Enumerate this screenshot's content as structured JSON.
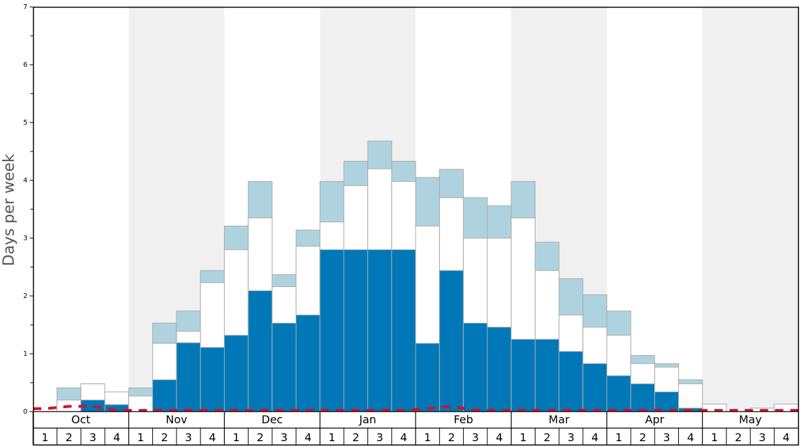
{
  "chart_data": {
    "type": "bar",
    "ylabel": "Days per week",
    "ylim": [
      0,
      7
    ],
    "yticks": [
      0,
      1,
      2,
      3,
      4,
      5,
      6,
      7
    ],
    "months": [
      "Oct",
      "Nov",
      "Dec",
      "Jan",
      "Feb",
      "Mar",
      "Apr",
      "May"
    ],
    "weeks": [
      "1",
      "2",
      "3",
      "4"
    ],
    "colors": {
      "dark": "#0077b6",
      "white": "#ffffff",
      "light": "#aed3df",
      "band": "#f0f0f0",
      "dashed": "#d0102a",
      "edge": "#aaaaaa"
    },
    "series": [
      {
        "values": [
          0.0,
          0.0,
          0.2,
          0.12,
          0.0,
          0.55,
          1.19,
          1.11,
          1.32,
          2.09,
          1.53,
          1.67,
          2.8,
          2.8,
          2.8,
          2.8,
          1.18,
          2.44,
          1.53,
          1.46,
          1.25,
          1.25,
          1.04,
          0.83,
          0.62,
          0.48,
          0.34,
          0.06,
          0.0,
          0.0,
          0.0,
          0.0
        ]
      },
      {
        "values": [
          0.0,
          0.2,
          0.48,
          0.34,
          0.27,
          1.18,
          1.39,
          2.23,
          2.8,
          3.35,
          2.16,
          2.86,
          3.28,
          3.91,
          4.2,
          3.98,
          3.21,
          3.7,
          3.0,
          3.0,
          3.35,
          2.44,
          1.67,
          1.46,
          1.32,
          0.83,
          0.77,
          0.48,
          0.13,
          0.0,
          0.06,
          0.13
        ]
      },
      {
        "values": [
          0.0,
          0.41,
          0.48,
          0.34,
          0.41,
          1.53,
          1.74,
          2.44,
          3.21,
          3.98,
          2.37,
          3.14,
          3.98,
          4.33,
          4.68,
          4.33,
          4.05,
          4.19,
          3.7,
          3.56,
          3.98,
          2.93,
          2.3,
          2.02,
          1.74,
          0.97,
          0.83,
          0.55,
          0.13,
          0.0,
          0.06,
          0.13
        ]
      },
      {
        "values": [
          0.05,
          0.09,
          0.09,
          0.02,
          0.02,
          0.02,
          0.02,
          0.02,
          0.02,
          0.02,
          0.02,
          0.02,
          0.02,
          0.02,
          0.02,
          0.02,
          0.05,
          0.09,
          0.02,
          0.02,
          0.02,
          0.02,
          0.02,
          0.02,
          0.02,
          0.02,
          0.02,
          0.02,
          0.02,
          0.02,
          0.02,
          0.02
        ]
      }
    ]
  }
}
